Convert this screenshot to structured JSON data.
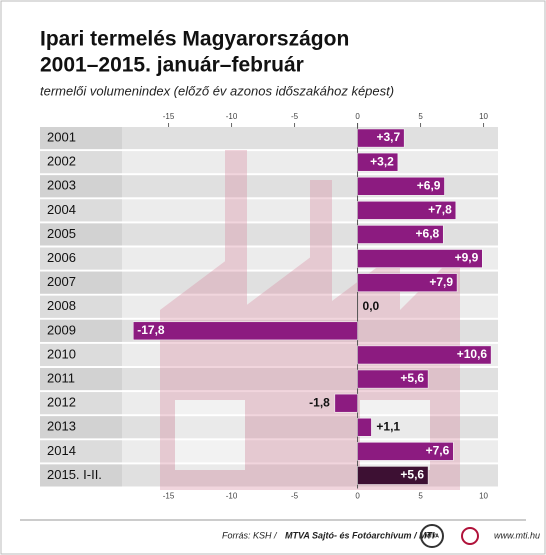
{
  "chart_data": {
    "type": "bar",
    "orientation": "horizontal",
    "title": "Ipari termelés Magyarországon",
    "subtitle": "2001–2015. január–február",
    "description": "termelői volumenindex (előző év azonos időszakához képest)",
    "categories": [
      "2001",
      "2002",
      "2003",
      "2004",
      "2005",
      "2006",
      "2007",
      "2008",
      "2009",
      "2010",
      "2011",
      "2012",
      "2013",
      "2014",
      "2015. I-II."
    ],
    "values": [
      3.7,
      3.2,
      6.9,
      7.8,
      6.8,
      9.9,
      7.9,
      0.0,
      -17.8,
      10.6,
      5.6,
      -1.8,
      1.1,
      7.6,
      5.6
    ],
    "value_labels": [
      "+3,7",
      "+3,2",
      "+6,9",
      "+7,8",
      "+6,8",
      "+9,9",
      "+7,9",
      "0,0",
      "-17,8",
      "+10,6",
      "+5,6",
      "-1,8",
      "+1,1",
      "+7,6",
      "+5,6"
    ],
    "colors": [
      "#8c1b80",
      "#8c1b80",
      "#8c1b80",
      "#8c1b80",
      "#8c1b80",
      "#8c1b80",
      "#8c1b80",
      "#8c1b80",
      "#8c1b80",
      "#8c1b80",
      "#8c1b80",
      "#8c1b80",
      "#8c1b80",
      "#8c1b80",
      "#3d1033"
    ],
    "xlim": [
      -17.9,
      11.1
    ],
    "xticks": [
      -15,
      -10,
      -5,
      0,
      5,
      10
    ],
    "source": "Forrás: KSH /",
    "credit": "MTVA Sajtó- és Fotóarchívum / MTI",
    "logo": "MTVA",
    "website": "www.mti.hu"
  }
}
